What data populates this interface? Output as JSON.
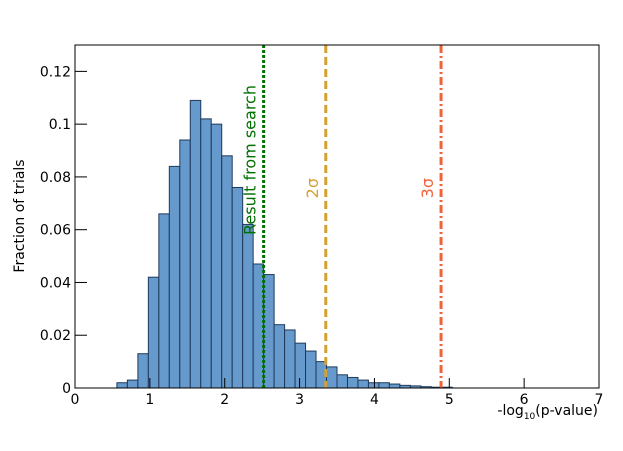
{
  "chart_data": {
    "type": "histogram",
    "x_label": {
      "prefix": "-log",
      "sub": "10",
      "suffix": "(p-value)"
    },
    "y_label": "Fraction of trials",
    "bins": [
      0.56,
      0.7,
      0.84,
      0.98,
      1.12,
      1.26,
      1.4,
      1.54,
      1.68,
      1.82,
      1.96,
      2.1,
      2.24,
      2.38,
      2.52,
      2.66,
      2.8,
      2.94,
      3.08,
      3.22,
      3.36,
      3.5,
      3.64,
      3.78,
      3.92,
      4.06,
      4.2,
      4.34,
      4.48,
      4.62,
      4.76,
      4.9,
      5.04
    ],
    "values": [
      0.002,
      0.003,
      0.013,
      0.042,
      0.066,
      0.084,
      0.094,
      0.109,
      0.102,
      0.1,
      0.088,
      0.076,
      0.062,
      0.047,
      0.043,
      0.024,
      0.022,
      0.017,
      0.014,
      0.01,
      0.008,
      0.005,
      0.004,
      0.003,
      0.002,
      0.002,
      0.0015,
      0.001,
      0.0008,
      0.0005,
      0.0003,
      0.0003
    ],
    "color": "#6699cc",
    "edge_color": "#1f3a5a",
    "xlim": [
      0,
      7
    ],
    "ylim": [
      0,
      0.13
    ],
    "xticks": [
      0,
      1,
      2,
      3,
      4,
      5,
      6,
      7
    ],
    "yticks": [
      0,
      0.02,
      0.04,
      0.06,
      0.08,
      0.1,
      0.12
    ],
    "markers": [
      {
        "label": "Result from search",
        "value": 2.52,
        "color": "#007000",
        "dash": "3 2"
      },
      {
        "label": "2σ",
        "value": 3.35,
        "color": "#d4a032",
        "dash": "8 4"
      },
      {
        "label": "3σ",
        "value": 4.89,
        "color": "#f4623a",
        "dash": "8 3 2 3"
      }
    ]
  }
}
